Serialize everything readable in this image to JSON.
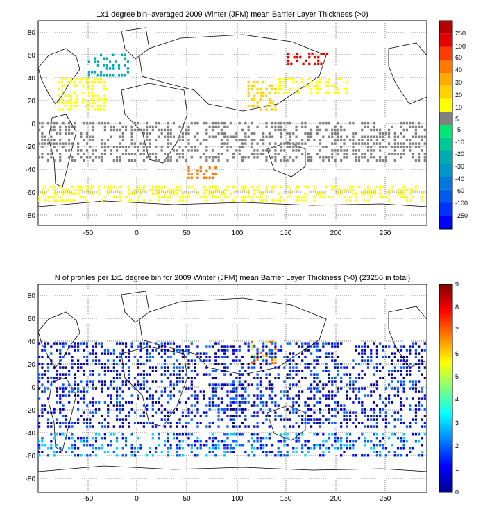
{
  "chart_data": [
    {
      "type": "heatmap",
      "title": "1x1 degree bin–averaged 2009 Winter (JFM) mean Barrier Layer Thickness (>0)",
      "xlabel": "",
      "ylabel": "",
      "xlim": [
        -90,
        300
      ],
      "ylim": [
        -90,
        90
      ],
      "xticks": [
        -50,
        0,
        50,
        100,
        150,
        200,
        250
      ],
      "yticks": [
        -80,
        -60,
        -40,
        -20,
        0,
        20,
        40,
        60,
        80
      ],
      "grid": true,
      "colorbar": {
        "placement": "right",
        "labels": [
          "250",
          "100",
          "60",
          "40",
          "30",
          "20",
          "10",
          "5",
          "-5",
          "-10",
          "-20",
          "-30",
          "-40",
          "-60",
          "-100",
          "-250"
        ],
        "colors": [
          "#b40000",
          "#e60000",
          "#ff3c00",
          "#ff7800",
          "#ffaa00",
          "#ffd200",
          "#ffff00",
          "#808080",
          "#00e673",
          "#00c896",
          "#00aab4",
          "#0096c8",
          "#0078dc",
          "#005aeb",
          "#0032ff",
          "#0000ff"
        ]
      },
      "regions": [
        {
          "lon": [
            -40,
            0
          ],
          "lat": [
            40,
            60
          ],
          "dominant_class": "-20"
        },
        {
          "lon": [
            -70,
            -20
          ],
          "lat": [
            10,
            40
          ],
          "dominant_class": "10"
        },
        {
          "lon": [
            120,
            150
          ],
          "lat": [
            10,
            35
          ],
          "dominant_class": "20"
        },
        {
          "lon": [
            150,
            220
          ],
          "lat": [
            25,
            40
          ],
          "dominant_class": "10"
        },
        {
          "lon": [
            160,
            200
          ],
          "lat": [
            50,
            60
          ],
          "dominant_class": "100"
        },
        {
          "lon": [
            60,
            90
          ],
          "lat": [
            -50,
            -40
          ],
          "dominant_class": "40"
        },
        {
          "lon": [
            -90,
            300
          ],
          "lat": [
            -35,
            0
          ],
          "dominant_class": "5"
        },
        {
          "lon": [
            -90,
            300
          ],
          "lat": [
            -70,
            -55
          ],
          "dominant_class": "10"
        }
      ]
    },
    {
      "type": "heatmap",
      "title": "N of profiles per 1x1 degree bin for 2009 Winter (JFM) mean Barrier Layer Thickness (>0) (23256 in total)",
      "xlabel": "",
      "ylabel": "",
      "xlim": [
        -90,
        300
      ],
      "ylim": [
        -90,
        90
      ],
      "xticks": [
        -50,
        0,
        50,
        100,
        150,
        200,
        250
      ],
      "yticks": [
        -80,
        -60,
        -40,
        -20,
        0,
        20,
        40,
        60,
        80
      ],
      "grid": true,
      "colorbar": {
        "placement": "right",
        "min": 0,
        "max": 9,
        "ticks": [
          0,
          1,
          2,
          3,
          4,
          5,
          6,
          7,
          8,
          9
        ]
      },
      "regions": [
        {
          "lon": [
            -90,
            300
          ],
          "lat": [
            -60,
            -40
          ],
          "dominant_value": 2
        },
        {
          "lon": [
            120,
            150
          ],
          "lat": [
            20,
            40
          ],
          "dominant_value": 6
        },
        {
          "lon": [
            -90,
            300
          ],
          "lat": [
            -35,
            40
          ],
          "dominant_value": 1
        }
      ]
    }
  ]
}
